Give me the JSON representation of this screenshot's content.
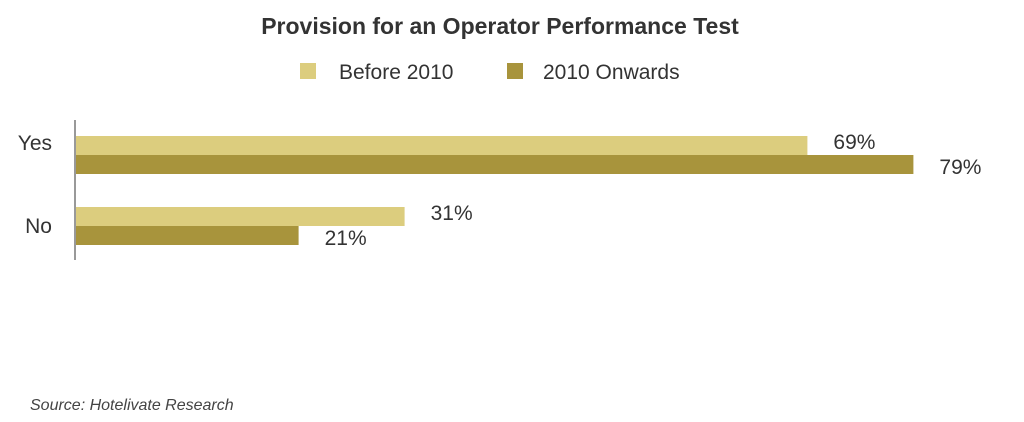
{
  "colors": {
    "series_before": "#dccd7e",
    "series_after": "#a8943c",
    "axis": "#999999",
    "text": "#333333"
  },
  "chart_data": {
    "type": "bar",
    "orientation": "horizontal",
    "title": "Provision for an Operator Performance Test",
    "categories": [
      "Yes",
      "No"
    ],
    "series": [
      {
        "name": "Before 2010",
        "values": [
          69,
          31
        ],
        "labels": [
          "69%",
          "31%"
        ]
      },
      {
        "name": "2010 Onwards",
        "values": [
          79,
          21
        ],
        "labels": [
          "79%",
          "21%"
        ]
      }
    ],
    "xlim": [
      0,
      100
    ],
    "unit": "%",
    "grid": false,
    "legend_position": "top-center"
  },
  "source": "Source: Hotelivate Research"
}
